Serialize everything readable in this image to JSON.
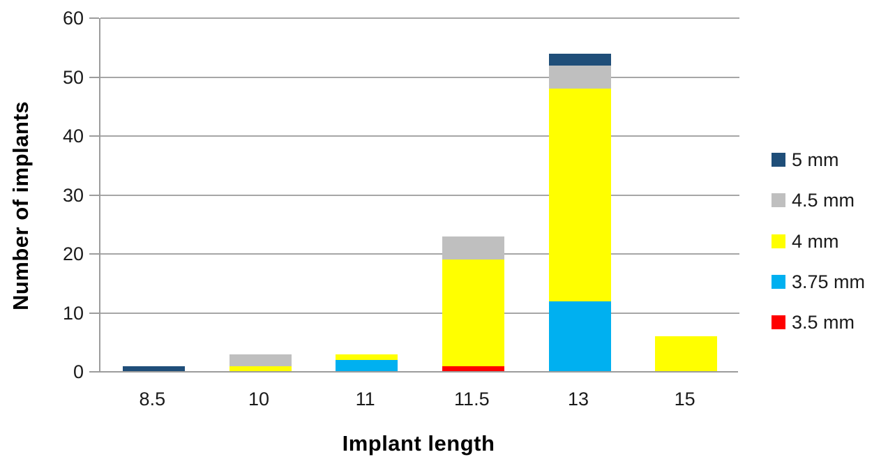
{
  "chart_data": {
    "type": "bar",
    "stacked": true,
    "title": "",
    "xlabel": "Implant length",
    "ylabel": "Number of implants",
    "categories": [
      "8.5",
      "10",
      "11",
      "11.5",
      "13",
      "15"
    ],
    "series": [
      {
        "name": "3.5 mm",
        "color": "#FF0000",
        "values": [
          0,
          0,
          0,
          1,
          0,
          0
        ]
      },
      {
        "name": "3.75 mm",
        "color": "#00B0F0",
        "values": [
          0,
          0,
          2,
          0,
          12,
          0
        ]
      },
      {
        "name": "4 mm",
        "color": "#FFFF00",
        "values": [
          0,
          1,
          1,
          18,
          36,
          6
        ]
      },
      {
        "name": "4.5 mm",
        "color": "#BFBFBF",
        "values": [
          0,
          2,
          0,
          4,
          4,
          0
        ]
      },
      {
        "name": "5 mm",
        "color": "#1F4E79",
        "values": [
          1,
          0,
          0,
          0,
          2,
          0
        ]
      }
    ],
    "totals": [
      1,
      3,
      3,
      23,
      54,
      6
    ],
    "ylim": [
      0,
      60
    ],
    "yticks": [
      0,
      10,
      20,
      30,
      40,
      50,
      60
    ],
    "grid": true,
    "legend_position": "right",
    "legend_order_top_to_bottom": [
      "5 mm",
      "4.5 mm",
      "4 mm",
      "3.75 mm",
      "3.5 mm"
    ]
  },
  "colors": {
    "gridline": "#A6A6A6",
    "axis": "#9C9C9C",
    "text": "#1A1A1A",
    "background": "#FFFFFF"
  }
}
